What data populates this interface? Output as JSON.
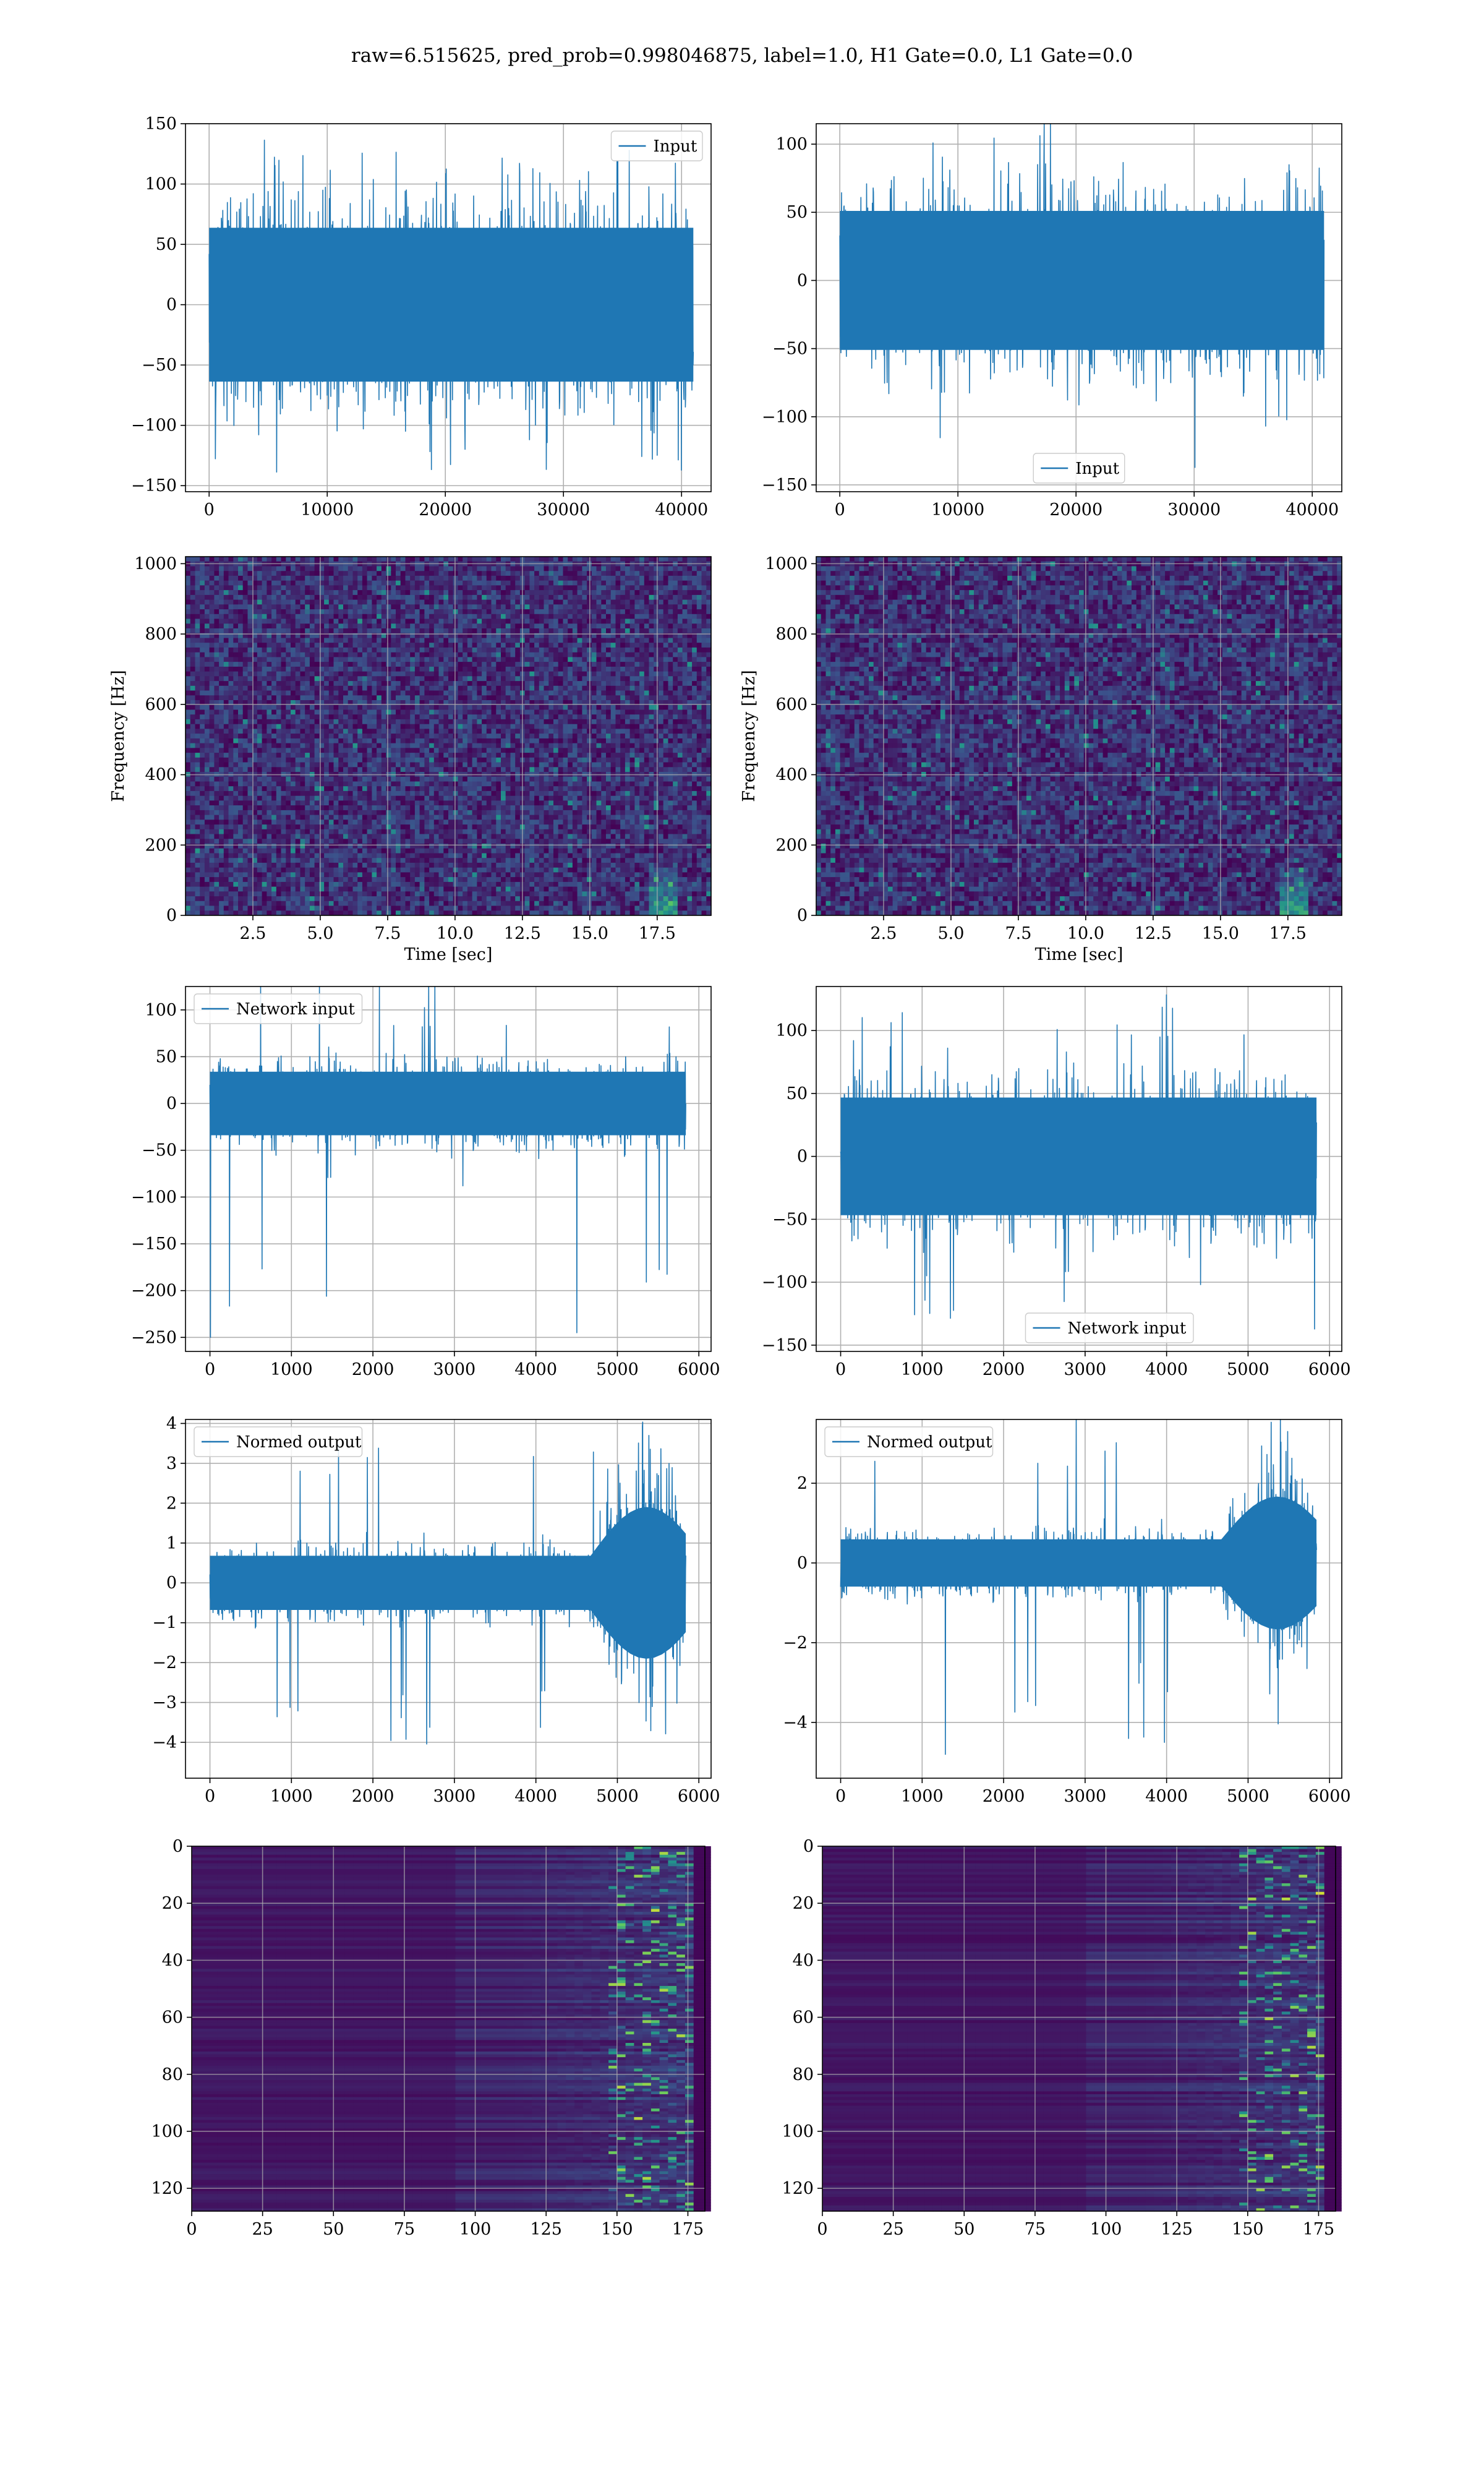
{
  "figure": {
    "title": "raw=6.515625, pred_prob=0.998046875, label=1.0, H1 Gate=0.0, L1 Gate=0.0",
    "line_color": "#1f77b4"
  },
  "chart_data": [
    {
      "id": "input-h1",
      "type": "line",
      "title": "",
      "xlabel": "",
      "ylabel": "",
      "xlim": [
        -2000,
        42500
      ],
      "ylim": [
        -155,
        150
      ],
      "xticks": [
        0,
        10000,
        20000,
        30000,
        40000
      ],
      "xtick_labels": [
        "0",
        "10000",
        "20000",
        "30000",
        "40000"
      ],
      "yticks": [
        -150,
        -100,
        -50,
        0,
        50,
        100,
        150
      ],
      "ytick_labels": [
        "−150",
        "−100",
        "−50",
        "0",
        "50",
        "100",
        "150"
      ],
      "grid": true,
      "legend": "upper right",
      "series": [
        {
          "name": "Input",
          "x_range": [
            0,
            41000
          ],
          "band": [
            -75,
            75
          ],
          "extremes": [
            -140,
            140
          ],
          "envelope": "flat"
        }
      ]
    },
    {
      "id": "input-l1",
      "type": "line",
      "title": "",
      "xlabel": "",
      "ylabel": "",
      "xlim": [
        -2000,
        42500
      ],
      "ylim": [
        -155,
        115
      ],
      "xticks": [
        0,
        10000,
        20000,
        30000,
        40000
      ],
      "xtick_labels": [
        "0",
        "10000",
        "20000",
        "30000",
        "40000"
      ],
      "yticks": [
        -150,
        -100,
        -50,
        0,
        50,
        100
      ],
      "ytick_labels": [
        "−150",
        "−100",
        "−50",
        "0",
        "50",
        "100"
      ],
      "grid": true,
      "legend": "lower center",
      "series": [
        {
          "name": "Input",
          "x_range": [
            0,
            41000
          ],
          "band": [
            -60,
            60
          ],
          "extremes": [
            -140,
            112
          ],
          "envelope": "flat"
        }
      ]
    },
    {
      "id": "spectrogram-h1",
      "type": "heatmap",
      "title": "",
      "xlabel": "Time [sec]",
      "ylabel": "Frequency [Hz]",
      "xlim": [
        0,
        19.5
      ],
      "ylim": [
        0,
        1020
      ],
      "xticks": [
        2.5,
        5.0,
        7.5,
        10.0,
        12.5,
        15.0,
        17.5
      ],
      "xtick_labels": [
        "2.5",
        "5.0",
        "7.5",
        "10.0",
        "12.5",
        "15.0",
        "17.5"
      ],
      "yticks": [
        0,
        200,
        400,
        600,
        800,
        1000
      ],
      "ytick_labels": [
        "0",
        "200",
        "400",
        "600",
        "800",
        "1000"
      ],
      "grid": true,
      "colormap": "viridis",
      "feature": "chirp near 18 s"
    },
    {
      "id": "spectrogram-l1",
      "type": "heatmap",
      "title": "",
      "xlabel": "Time [sec]",
      "ylabel": "Frequency [Hz]",
      "xlim": [
        0,
        19.5
      ],
      "ylim": [
        0,
        1020
      ],
      "xticks": [
        2.5,
        5.0,
        7.5,
        10.0,
        12.5,
        15.0,
        17.5
      ],
      "xtick_labels": [
        "2.5",
        "5.0",
        "7.5",
        "10.0",
        "12.5",
        "15.0",
        "17.5"
      ],
      "yticks": [
        0,
        200,
        400,
        600,
        800,
        1000
      ],
      "ytick_labels": [
        "0",
        "200",
        "400",
        "600",
        "800",
        "1000"
      ],
      "grid": true,
      "colormap": "viridis",
      "feature": "chirp near 18 s"
    },
    {
      "id": "network-input-h1",
      "type": "line",
      "title": "",
      "xlabel": "",
      "ylabel": "",
      "xlim": [
        -300,
        6150
      ],
      "ylim": [
        -265,
        125
      ],
      "xticks": [
        0,
        1000,
        2000,
        3000,
        4000,
        5000,
        6000
      ],
      "xtick_labels": [
        "0",
        "1000",
        "2000",
        "3000",
        "4000",
        "5000",
        "6000"
      ],
      "yticks": [
        -250,
        -200,
        -150,
        -100,
        -50,
        0,
        50,
        100
      ],
      "ytick_labels": [
        "−250",
        "−200",
        "−150",
        "−100",
        "−50",
        "0",
        "50",
        "100"
      ],
      "grid": true,
      "legend": "upper left",
      "series": [
        {
          "name": "Network input",
          "x_range": [
            0,
            5840
          ],
          "band": [
            -40,
            40
          ],
          "extremes": [
            -250,
            108
          ],
          "envelope": "flat"
        }
      ]
    },
    {
      "id": "network-input-l1",
      "type": "line",
      "title": "",
      "xlabel": "",
      "ylabel": "",
      "xlim": [
        -300,
        6150
      ],
      "ylim": [
        -155,
        135
      ],
      "xticks": [
        0,
        1000,
        2000,
        3000,
        4000,
        5000,
        6000
      ],
      "xtick_labels": [
        "0",
        "1000",
        "2000",
        "3000",
        "4000",
        "5000",
        "6000"
      ],
      "yticks": [
        -150,
        -100,
        -50,
        0,
        50,
        100
      ],
      "ytick_labels": [
        "−150",
        "−100",
        "−50",
        "0",
        "50",
        "100"
      ],
      "grid": true,
      "legend": "lower right",
      "series": [
        {
          "name": "Network input",
          "x_range": [
            0,
            5840
          ],
          "band": [
            -55,
            55
          ],
          "extremes": [
            -140,
            125
          ],
          "envelope": "flat"
        }
      ]
    },
    {
      "id": "normed-output-h1",
      "type": "line",
      "title": "",
      "xlabel": "",
      "ylabel": "",
      "xlim": [
        -300,
        6150
      ],
      "ylim": [
        -4.9,
        4.1
      ],
      "xticks": [
        0,
        1000,
        2000,
        3000,
        4000,
        5000,
        6000
      ],
      "xtick_labels": [
        "0",
        "1000",
        "2000",
        "3000",
        "4000",
        "5000",
        "6000"
      ],
      "yticks": [
        -4,
        -3,
        -2,
        -1,
        0,
        1,
        2,
        3,
        4
      ],
      "ytick_labels": [
        "−4",
        "−3",
        "−2",
        "−1",
        "0",
        "1",
        "2",
        "3",
        "4"
      ],
      "grid": true,
      "legend": "upper left",
      "series": [
        {
          "name": "Normed output",
          "x_range": [
            0,
            5840
          ],
          "band": [
            -0.8,
            0.8
          ],
          "extremes": [
            -4.4,
            3.7
          ],
          "envelope": "rising after 4700"
        }
      ]
    },
    {
      "id": "normed-output-l1",
      "type": "line",
      "title": "",
      "xlabel": "",
      "ylabel": "",
      "xlim": [
        -300,
        6150
      ],
      "ylim": [
        -5.4,
        3.6
      ],
      "xticks": [
        0,
        1000,
        2000,
        3000,
        4000,
        5000,
        6000
      ],
      "xtick_labels": [
        "0",
        "1000",
        "2000",
        "3000",
        "4000",
        "5000",
        "6000"
      ],
      "yticks": [
        -4,
        -2,
        0,
        2
      ],
      "ytick_labels": [
        "−4",
        "−2",
        "0",
        "2"
      ],
      "grid": true,
      "legend": "upper left",
      "series": [
        {
          "name": "Normed output",
          "x_range": [
            0,
            5840
          ],
          "band": [
            -0.7,
            0.7
          ],
          "extremes": [
            -4.9,
            3.3
          ],
          "envelope": "rising after 4700"
        }
      ]
    },
    {
      "id": "feature-map-h1",
      "type": "heatmap",
      "title": "",
      "xlabel": "",
      "ylabel": "",
      "xlim": [
        0,
        181
      ],
      "ylim": [
        128,
        0
      ],
      "xticks": [
        0,
        25,
        50,
        75,
        100,
        125,
        150,
        175
      ],
      "xtick_labels": [
        "0",
        "25",
        "50",
        "75",
        "100",
        "125",
        "150",
        "175"
      ],
      "yticks": [
        0,
        20,
        40,
        60,
        80,
        100,
        120
      ],
      "ytick_labels": [
        "0",
        "20",
        "40",
        "60",
        "80",
        "100",
        "120"
      ],
      "grid": true,
      "colormap": "viridis",
      "feature": "activations concentrated at columns 150–175"
    },
    {
      "id": "feature-map-l1",
      "type": "heatmap",
      "title": "",
      "xlabel": "",
      "ylabel": "",
      "xlim": [
        0,
        181
      ],
      "ylim": [
        128,
        0
      ],
      "xticks": [
        0,
        25,
        50,
        75,
        100,
        125,
        150,
        175
      ],
      "xtick_labels": [
        "0",
        "25",
        "50",
        "75",
        "100",
        "125",
        "150",
        "175"
      ],
      "yticks": [
        0,
        20,
        40,
        60,
        80,
        100,
        120
      ],
      "ytick_labels": [
        "0",
        "20",
        "40",
        "60",
        "80",
        "100",
        "120"
      ],
      "grid": true,
      "colormap": "viridis",
      "feature": "activations concentrated at columns 150–175"
    }
  ]
}
